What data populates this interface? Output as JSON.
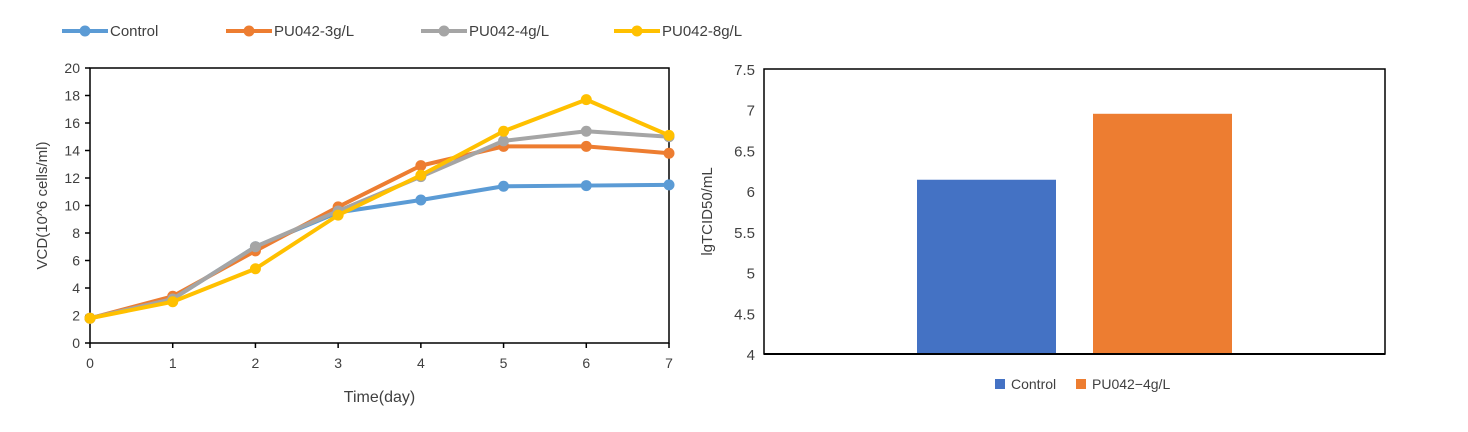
{
  "chart_data": [
    {
      "type": "line",
      "xlabel": "Time(day)",
      "ylabel": "VCD(10^6 cells/ml)",
      "xlim": [
        0,
        7
      ],
      "ylim": [
        0,
        20
      ],
      "xticks": [
        "0",
        "1",
        "2",
        "3",
        "4",
        "5",
        "6",
        "7"
      ],
      "yticks": [
        "0",
        "2",
        "4",
        "6",
        "8",
        "10",
        "12",
        "14",
        "16",
        "18",
        "20"
      ],
      "grid": false,
      "legend": "top",
      "x": [
        0,
        1,
        2,
        3,
        4,
        5,
        6,
        7
      ],
      "series": [
        {
          "name": "Control",
          "color": "#5B9BD5",
          "values": [
            1.8,
            3.2,
            7.0,
            9.5,
            10.4,
            11.4,
            11.45,
            11.5
          ]
        },
        {
          "name": "PU042-3g/L",
          "color": "#ED7D31",
          "values": [
            1.8,
            3.4,
            6.7,
            9.9,
            12.9,
            14.3,
            14.3,
            13.8
          ]
        },
        {
          "name": "PU042-4g/L",
          "color": "#A5A5A5",
          "values": [
            1.8,
            3.2,
            7.0,
            9.6,
            12.1,
            14.7,
            15.4,
            15.0
          ]
        },
        {
          "name": "PU042-8g/L",
          "color": "#FFC000",
          "values": [
            1.8,
            3.0,
            5.4,
            9.3,
            12.2,
            15.4,
            17.7,
            15.1
          ]
        }
      ]
    },
    {
      "type": "bar",
      "ylabel": "lgTCID50/mL",
      "ylim": [
        4,
        7.5
      ],
      "yticks": [
        "4",
        "4.5",
        "5",
        "5.5",
        "6",
        "6.5",
        "7",
        "7.5"
      ],
      "grid": false,
      "legend": "bottom",
      "series": [
        {
          "name": "Control",
          "color": "#4472C4",
          "values": [
            6.14
          ]
        },
        {
          "name": "PU042−4g/L",
          "color": "#ED7D31",
          "values": [
            6.95
          ]
        }
      ]
    }
  ]
}
